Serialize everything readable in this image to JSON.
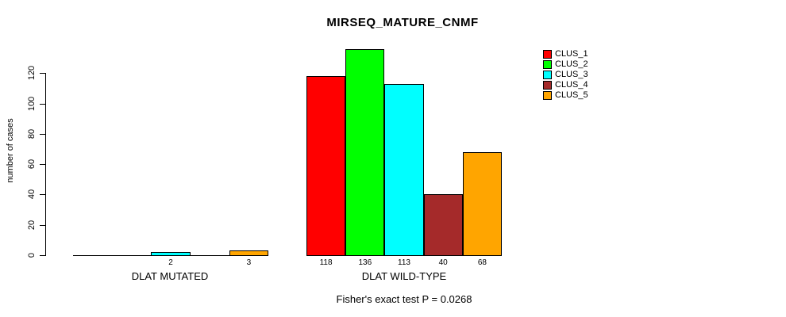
{
  "title": "MIRSEQ_MATURE_CNMF",
  "caption": "Fisher's exact test P = 0.0268",
  "y_axis": {
    "label": "number of cases",
    "ticks": [
      0,
      20,
      40,
      60,
      80,
      100,
      120
    ]
  },
  "legend": {
    "entries": [
      {
        "label": "CLUS_1",
        "color": "#FF0000"
      },
      {
        "label": "CLUS_2",
        "color": "#00FF00"
      },
      {
        "label": "CLUS_3",
        "color": "#00FFFF"
      },
      {
        "label": "CLUS_4",
        "color": "#A52A2A"
      },
      {
        "label": "CLUS_5",
        "color": "#FFA500"
      }
    ]
  },
  "chart_data": {
    "type": "bar",
    "grouped": true,
    "title": "MIRSEQ_MATURE_CNMF",
    "xlabel": "",
    "ylabel": "number of cases",
    "ylim": [
      0,
      140
    ],
    "axis_ticks": [
      0,
      20,
      40,
      60,
      80,
      100,
      120
    ],
    "legend_position": "top-right",
    "grid": false,
    "categories": [
      "DLAT MUTATED",
      "DLAT WILD-TYPE"
    ],
    "series": [
      {
        "name": "CLUS_1",
        "color": "#FF0000",
        "values": [
          0,
          118
        ]
      },
      {
        "name": "CLUS_2",
        "color": "#00FF00",
        "values": [
          0,
          136
        ]
      },
      {
        "name": "CLUS_3",
        "color": "#00FFFF",
        "values": [
          2,
          113
        ]
      },
      {
        "name": "CLUS_4",
        "color": "#A52A2A",
        "values": [
          0,
          40
        ]
      },
      {
        "name": "CLUS_5",
        "color": "#FFA500",
        "values": [
          3,
          68
        ]
      }
    ],
    "bar_labels": [
      [
        "",
        "",
        "2",
        "",
        "3"
      ],
      [
        "118",
        "136",
        "113",
        "40",
        "68"
      ]
    ],
    "annotation": "Fisher's exact test P = 0.0268"
  }
}
